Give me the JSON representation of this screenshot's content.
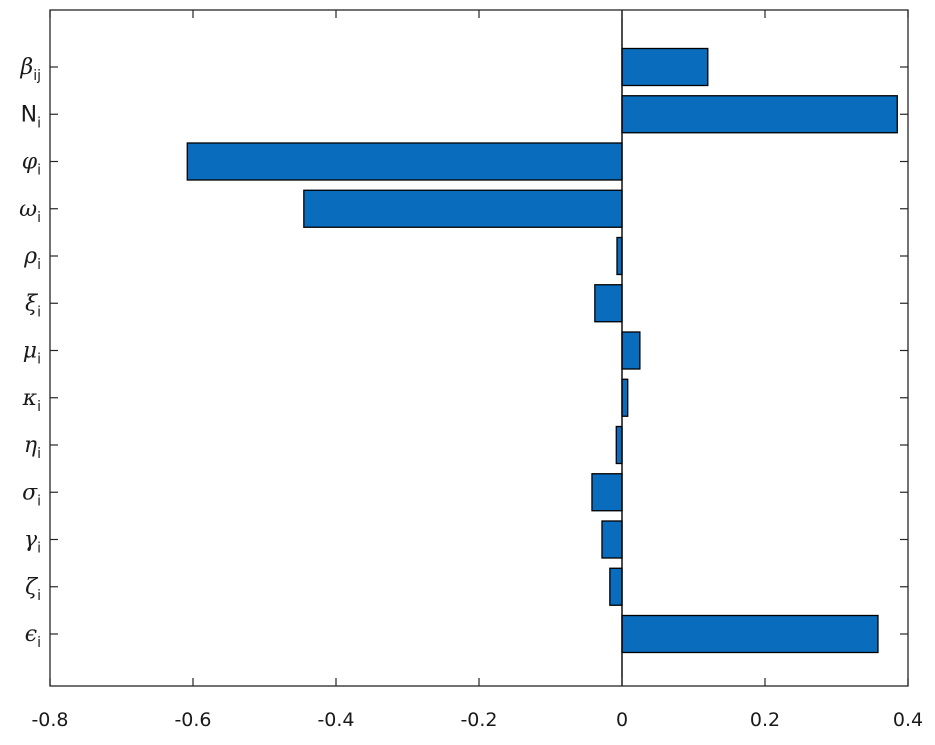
{
  "chart_data": {
    "type": "bar",
    "orientation": "horizontal",
    "categories": [
      {
        "symbol": "β",
        "subscript": "ij",
        "italic": true
      },
      {
        "symbol": "N",
        "subscript": "i",
        "italic": false
      },
      {
        "symbol": "φ",
        "subscript": "i",
        "italic": true
      },
      {
        "symbol": "ω",
        "subscript": "i",
        "italic": true
      },
      {
        "symbol": "ρ",
        "subscript": "i",
        "italic": true
      },
      {
        "symbol": "ξ",
        "subscript": "i",
        "italic": true
      },
      {
        "symbol": "μ",
        "subscript": "i",
        "italic": true
      },
      {
        "symbol": "κ",
        "subscript": "i",
        "italic": true
      },
      {
        "symbol": "η",
        "subscript": "i",
        "italic": true
      },
      {
        "symbol": "σ",
        "subscript": "i",
        "italic": true
      },
      {
        "symbol": "γ",
        "subscript": "i",
        "italic": true
      },
      {
        "symbol": "ζ",
        "subscript": "i",
        "italic": true
      },
      {
        "symbol": "ϵ",
        "subscript": "i",
        "italic": true
      }
    ],
    "values": [
      0.12,
      0.385,
      -0.608,
      -0.445,
      -0.007,
      -0.038,
      0.025,
      0.008,
      -0.008,
      -0.042,
      -0.028,
      -0.017,
      0.358
    ],
    "xlim": [
      -0.8,
      0.4
    ],
    "xticks": [
      -0.8,
      -0.6,
      -0.4,
      -0.2,
      0,
      0.2,
      0.4
    ],
    "xtick_labels": [
      "-0.8",
      "-0.6",
      "-0.4",
      "-0.2",
      "0",
      "0.2",
      "0.4"
    ],
    "grid": false,
    "bar_color": "#0a6cbd",
    "bar_edge_color": "#000000",
    "axis_color": "#262626"
  }
}
